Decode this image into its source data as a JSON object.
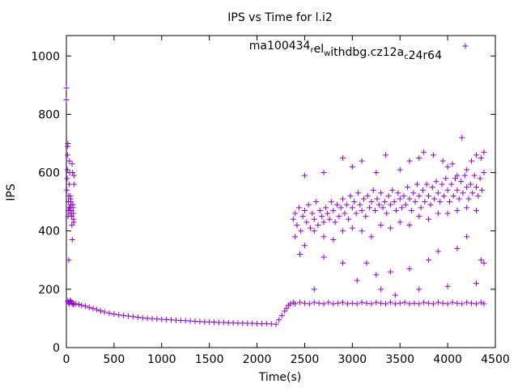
{
  "chart_data": {
    "type": "scatter",
    "title": "IPS vs Time for l.i2",
    "xlabel": "Time(s)",
    "ylabel": "IPS",
    "xlim": [
      0,
      4500
    ],
    "ylim": [
      0,
      1070
    ],
    "xticks": [
      0,
      500,
      1000,
      1500,
      2000,
      2500,
      3000,
      3500,
      4000,
      4500
    ],
    "yticks": [
      0,
      200,
      400,
      600,
      800,
      1000
    ],
    "legend_position": "top-right",
    "marker": "+",
    "color": "#9400d3",
    "series": [
      {
        "name_parts": [
          {
            "t": "ma100434",
            "s": 0
          },
          {
            "t": "r",
            "s": 1
          },
          {
            "t": "el",
            "s": 0
          },
          {
            "t": "w",
            "s": 1
          },
          {
            "t": "ithdbg.cz12a",
            "s": 0
          },
          {
            "t": "c",
            "s": 1
          },
          {
            "t": "24r64",
            "s": 0
          }
        ],
        "points": [
          [
            0,
            890
          ],
          [
            0,
            850
          ],
          [
            5,
            540
          ],
          [
            8,
            580
          ],
          [
            10,
            610
          ],
          [
            12,
            660
          ],
          [
            14,
            690
          ],
          [
            16,
            700
          ],
          [
            18,
            450
          ],
          [
            20,
            470
          ],
          [
            22,
            500
          ],
          [
            24,
            520
          ],
          [
            25,
            300
          ],
          [
            28,
            480
          ],
          [
            30,
            560
          ],
          [
            32,
            640
          ],
          [
            35,
            600
          ],
          [
            38,
            480
          ],
          [
            40,
            460
          ],
          [
            42,
            520
          ],
          [
            45,
            510
          ],
          [
            48,
            500
          ],
          [
            50,
            490
          ],
          [
            52,
            470
          ],
          [
            55,
            450
          ],
          [
            58,
            420
          ],
          [
            60,
            630
          ],
          [
            62,
            370
          ],
          [
            65,
            600
          ],
          [
            68,
            490
          ],
          [
            70,
            480
          ],
          [
            72,
            460
          ],
          [
            75,
            440
          ],
          [
            78,
            430
          ],
          [
            80,
            590
          ],
          [
            82,
            560
          ],
          [
            15,
            160
          ],
          [
            20,
            155
          ],
          [
            30,
            150
          ],
          [
            40,
            162
          ],
          [
            50,
            158
          ],
          [
            60,
            152
          ],
          [
            70,
            148
          ],
          [
            80,
            150
          ],
          [
            100,
            150
          ],
          [
            130,
            148
          ],
          [
            160,
            145
          ],
          [
            200,
            142
          ],
          [
            240,
            138
          ],
          [
            280,
            134
          ],
          [
            320,
            130
          ],
          [
            360,
            126
          ],
          [
            400,
            122
          ],
          [
            450,
            118
          ],
          [
            500,
            115
          ],
          [
            550,
            112
          ],
          [
            600,
            110
          ],
          [
            650,
            108
          ],
          [
            700,
            106
          ],
          [
            750,
            104
          ],
          [
            800,
            102
          ],
          [
            850,
            100
          ],
          [
            900,
            99
          ],
          [
            950,
            98
          ],
          [
            1000,
            97
          ],
          [
            1050,
            96
          ],
          [
            1100,
            95
          ],
          [
            1150,
            94
          ],
          [
            1200,
            93
          ],
          [
            1250,
            92
          ],
          [
            1300,
            91
          ],
          [
            1350,
            90
          ],
          [
            1400,
            89
          ],
          [
            1450,
            88
          ],
          [
            1500,
            88
          ],
          [
            1550,
            87
          ],
          [
            1600,
            86
          ],
          [
            1650,
            86
          ],
          [
            1700,
            85
          ],
          [
            1750,
            85
          ],
          [
            1800,
            84
          ],
          [
            1850,
            84
          ],
          [
            1900,
            83
          ],
          [
            1950,
            83
          ],
          [
            2000,
            82
          ],
          [
            2050,
            82
          ],
          [
            2100,
            82
          ],
          [
            2150,
            81
          ],
          [
            2200,
            80
          ],
          [
            2230,
            95
          ],
          [
            2260,
            110
          ],
          [
            2290,
            125
          ],
          [
            2310,
            135
          ],
          [
            2330,
            145
          ],
          [
            2350,
            150
          ],
          [
            2380,
            155
          ],
          [
            2400,
            150
          ],
          [
            2450,
            155
          ],
          [
            2500,
            152
          ],
          [
            2550,
            150
          ],
          [
            2600,
            155
          ],
          [
            2650,
            152
          ],
          [
            2700,
            150
          ],
          [
            2750,
            155
          ],
          [
            2800,
            150
          ],
          [
            2850,
            152
          ],
          [
            2900,
            155
          ],
          [
            2950,
            150
          ],
          [
            3000,
            152
          ],
          [
            3050,
            150
          ],
          [
            3100,
            155
          ],
          [
            3150,
            152
          ],
          [
            3200,
            150
          ],
          [
            3250,
            155
          ],
          [
            3300,
            152
          ],
          [
            3350,
            150
          ],
          [
            3400,
            155
          ],
          [
            3450,
            150
          ],
          [
            3500,
            152
          ],
          [
            3550,
            155
          ],
          [
            3600,
            150
          ],
          [
            3650,
            152
          ],
          [
            3700,
            150
          ],
          [
            3750,
            155
          ],
          [
            3800,
            152
          ],
          [
            3850,
            150
          ],
          [
            3900,
            155
          ],
          [
            3950,
            152
          ],
          [
            4000,
            150
          ],
          [
            4050,
            155
          ],
          [
            4100,
            152
          ],
          [
            4150,
            150
          ],
          [
            4200,
            155
          ],
          [
            4250,
            152
          ],
          [
            4300,
            150
          ],
          [
            4350,
            155
          ],
          [
            4380,
            150
          ],
          [
            2380,
            440
          ],
          [
            2400,
            460
          ],
          [
            2420,
            420
          ],
          [
            2440,
            480
          ],
          [
            2460,
            400
          ],
          [
            2480,
            450
          ],
          [
            2500,
            470
          ],
          [
            2520,
            430
          ],
          [
            2540,
            490
          ],
          [
            2560,
            410
          ],
          [
            2580,
            460
          ],
          [
            2600,
            440
          ],
          [
            2620,
            500
          ],
          [
            2640,
            420
          ],
          [
            2660,
            470
          ],
          [
            2680,
            450
          ],
          [
            2700,
            430
          ],
          [
            2720,
            480
          ],
          [
            2740,
            460
          ],
          [
            2760,
            440
          ],
          [
            2780,
            500
          ],
          [
            2800,
            470
          ],
          [
            2820,
            430
          ],
          [
            2840,
            490
          ],
          [
            2860,
            450
          ],
          [
            2880,
            480
          ],
          [
            2900,
            510
          ],
          [
            2920,
            460
          ],
          [
            2940,
            490
          ],
          [
            2960,
            440
          ],
          [
            2980,
            520
          ],
          [
            3000,
            480
          ],
          [
            3020,
            500
          ],
          [
            3040,
            460
          ],
          [
            3060,
            530
          ],
          [
            3080,
            490
          ],
          [
            3100,
            470
          ],
          [
            3120,
            510
          ],
          [
            3140,
            450
          ],
          [
            3160,
            520
          ],
          [
            3180,
            480
          ],
          [
            3200,
            500
          ],
          [
            3220,
            540
          ],
          [
            3240,
            470
          ],
          [
            3260,
            510
          ],
          [
            3280,
            490
          ],
          [
            3300,
            530
          ],
          [
            3320,
            480
          ],
          [
            3340,
            500
          ],
          [
            3360,
            460
          ],
          [
            3380,
            520
          ],
          [
            3400,
            490
          ],
          [
            3420,
            540
          ],
          [
            3440,
            500
          ],
          [
            3460,
            470
          ],
          [
            3480,
            530
          ],
          [
            3500,
            510
          ],
          [
            3520,
            480
          ],
          [
            3540,
            520
          ],
          [
            3560,
            490
          ],
          [
            3580,
            550
          ],
          [
            3600,
            510
          ],
          [
            3620,
            470
          ],
          [
            3640,
            530
          ],
          [
            3660,
            500
          ],
          [
            3680,
            560
          ],
          [
            3700,
            520
          ],
          [
            3720,
            480
          ],
          [
            3740,
            540
          ],
          [
            3760,
            500
          ],
          [
            3780,
            560
          ],
          [
            3800,
            520
          ],
          [
            3820,
            490
          ],
          [
            3840,
            550
          ],
          [
            3860,
            510
          ],
          [
            3880,
            570
          ],
          [
            3900,
            530
          ],
          [
            3920,
            500
          ],
          [
            3940,
            560
          ],
          [
            3960,
            520
          ],
          [
            3980,
            580
          ],
          [
            4000,
            540
          ],
          [
            4020,
            500
          ],
          [
            4040,
            560
          ],
          [
            4060,
            520
          ],
          [
            4080,
            580
          ],
          [
            4100,
            540
          ],
          [
            4120,
            510
          ],
          [
            4140,
            570
          ],
          [
            4160,
            530
          ],
          [
            4180,
            590
          ],
          [
            4200,
            550
          ],
          [
            4220,
            510
          ],
          [
            4240,
            560
          ],
          [
            4260,
            530
          ],
          [
            4280,
            590
          ],
          [
            4300,
            550
          ],
          [
            4320,
            520
          ],
          [
            4340,
            580
          ],
          [
            4360,
            540
          ],
          [
            4380,
            600
          ],
          [
            2400,
            380
          ],
          [
            2500,
            350
          ],
          [
            2600,
            400
          ],
          [
            2700,
            380
          ],
          [
            2800,
            370
          ],
          [
            2900,
            400
          ],
          [
            3000,
            410
          ],
          [
            3100,
            400
          ],
          [
            3200,
            380
          ],
          [
            3300,
            420
          ],
          [
            3400,
            410
          ],
          [
            3500,
            430
          ],
          [
            3600,
            420
          ],
          [
            3700,
            450
          ],
          [
            3800,
            440
          ],
          [
            3900,
            460
          ],
          [
            4000,
            460
          ],
          [
            4100,
            470
          ],
          [
            4200,
            480
          ],
          [
            4300,
            470
          ],
          [
            2450,
            320
          ],
          [
            2600,
            200
          ],
          [
            2700,
            310
          ],
          [
            2900,
            290
          ],
          [
            3050,
            230
          ],
          [
            3150,
            290
          ],
          [
            3250,
            250
          ],
          [
            3300,
            200
          ],
          [
            3400,
            260
          ],
          [
            3450,
            180
          ],
          [
            3600,
            270
          ],
          [
            3700,
            200
          ],
          [
            3800,
            300
          ],
          [
            3900,
            330
          ],
          [
            4000,
            210
          ],
          [
            4100,
            340
          ],
          [
            4200,
            380
          ],
          [
            4300,
            220
          ],
          [
            4350,
            300
          ],
          [
            4380,
            290
          ],
          [
            2500,
            590
          ],
          [
            2700,
            600
          ],
          [
            2900,
            650
          ],
          [
            3000,
            620
          ],
          [
            3100,
            640
          ],
          [
            3250,
            600
          ],
          [
            3350,
            660
          ],
          [
            3500,
            610
          ],
          [
            3600,
            640
          ],
          [
            3700,
            650
          ],
          [
            3750,
            670
          ],
          [
            3850,
            660
          ],
          [
            3950,
            640
          ],
          [
            4000,
            620
          ],
          [
            4050,
            630
          ],
          [
            4100,
            590
          ],
          [
            4150,
            720
          ],
          [
            4200,
            610
          ],
          [
            4250,
            640
          ],
          [
            4300,
            660
          ],
          [
            4350,
            650
          ],
          [
            4380,
            670
          ]
        ]
      }
    ]
  }
}
